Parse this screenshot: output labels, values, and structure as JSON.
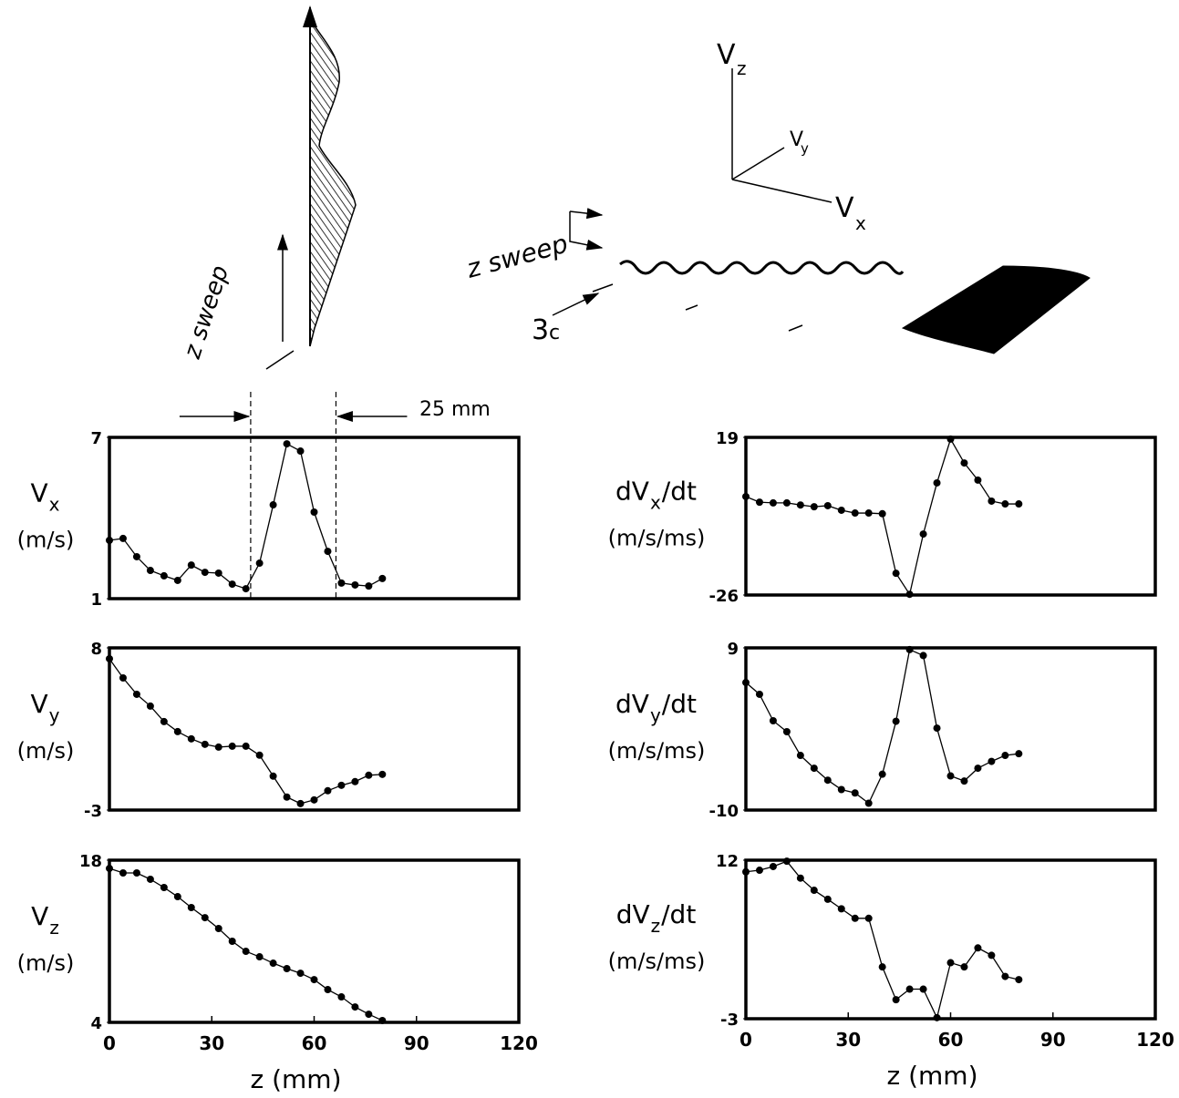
{
  "diagram": {
    "left_sweep_label": "z sweep",
    "right_sweep_label": "z sweep",
    "axis_z": {
      "main": "V",
      "sub": "z"
    },
    "axis_y": {
      "main": "V",
      "sub": "y"
    },
    "axis_x": {
      "main": "V",
      "sub": "x"
    },
    "distance": {
      "main": "3",
      "sub": "c"
    }
  },
  "chart_data": [
    {
      "type": "line",
      "ylabel": [
        {
          "text": "V"
        },
        {
          "text": "x",
          "sub": true
        }
      ],
      "yunit": "(m/s)",
      "x": [
        0,
        4,
        8,
        12,
        16,
        20,
        24,
        28,
        32,
        36,
        40,
        44,
        48,
        52,
        56,
        60,
        64,
        68,
        72,
        76,
        80
      ],
      "values": [
        3.17,
        3.24,
        2.56,
        2.05,
        1.85,
        1.68,
        2.25,
        1.98,
        1.95,
        1.54,
        1.37,
        2.32,
        4.49,
        6.76,
        6.49,
        4.22,
        2.76,
        1.58,
        1.51,
        1.47,
        1.75
      ],
      "color": "#000000",
      "xlim": [
        0,
        120
      ],
      "ylim": [
        1,
        7
      ],
      "yticks": [
        1,
        7
      ],
      "vlines": [
        41.4,
        66.4
      ],
      "annotation": "25 mm"
    },
    {
      "type": "line",
      "ylabel": [
        {
          "text": "V"
        },
        {
          "text": "y",
          "sub": true
        }
      ],
      "yunit": "(m/s)",
      "x": [
        0,
        4,
        8,
        12,
        16,
        20,
        24,
        28,
        32,
        36,
        40,
        44,
        48,
        52,
        56,
        60,
        64,
        68,
        72,
        76,
        80
      ],
      "values": [
        7.26,
        5.96,
        4.85,
        4.05,
        3.0,
        2.32,
        1.83,
        1.46,
        1.27,
        1.33,
        1.33,
        0.72,
        -0.7,
        -2.12,
        -2.56,
        -2.31,
        -1.69,
        -1.32,
        -1.07,
        -0.64,
        -0.58
      ],
      "color": "#000000",
      "xlim": [
        0,
        120
      ],
      "ylim": [
        -3,
        8
      ],
      "yticks": [
        -3,
        8
      ]
    },
    {
      "type": "line",
      "ylabel": [
        {
          "text": "V"
        },
        {
          "text": "z",
          "sub": true
        }
      ],
      "yunit": "(m/s)",
      "x": [
        0,
        4,
        8,
        12,
        16,
        20,
        24,
        28,
        32,
        36,
        40,
        44,
        48,
        52,
        56,
        60,
        64,
        68,
        72,
        76,
        80
      ],
      "values": [
        17.29,
        16.9,
        16.9,
        16.35,
        15.64,
        14.85,
        13.91,
        13.04,
        12.1,
        11.0,
        10.13,
        9.66,
        9.11,
        8.64,
        8.24,
        7.69,
        6.83,
        6.2,
        5.33,
        4.7,
        4.16
      ],
      "color": "#000000",
      "xlim": [
        0,
        120
      ],
      "ylim": [
        4,
        18
      ],
      "yticks": [
        4,
        18
      ],
      "xticks": [
        0,
        30,
        60,
        90,
        120
      ],
      "xlabel": "z (mm)"
    },
    {
      "type": "line",
      "ylabel": [
        {
          "text": "dV"
        },
        {
          "text": "x",
          "sub": true
        },
        {
          "text": "/dt"
        }
      ],
      "yunit": "(m/s/ms)",
      "x": [
        0,
        4,
        8,
        12,
        16,
        20,
        24,
        28,
        32,
        36,
        40,
        44,
        48,
        52,
        56,
        60,
        64,
        68,
        72,
        76,
        80
      ],
      "values": [
        2.1,
        0.5,
        0.3,
        0.3,
        -0.3,
        -0.8,
        -0.5,
        -1.8,
        -2.6,
        -2.6,
        -2.8,
        -19.8,
        -25.8,
        -8.6,
        6.0,
        18.5,
        11.7,
        6.8,
        0.8,
        0,
        0
      ],
      "color": "#000000",
      "xlim": [
        0,
        120
      ],
      "ylim": [
        -26,
        19
      ],
      "yticks": [
        -26,
        19
      ]
    },
    {
      "type": "line",
      "ylabel": [
        {
          "text": "dV"
        },
        {
          "text": "y",
          "sub": true
        },
        {
          "text": "/dt"
        }
      ],
      "yunit": "(m/s/ms)",
      "x": [
        0,
        4,
        8,
        12,
        16,
        20,
        24,
        28,
        32,
        36,
        40,
        44,
        48,
        52,
        56,
        60,
        64,
        68,
        72,
        76,
        80
      ],
      "values": [
        4.94,
        3.56,
        0.46,
        -0.82,
        -3.6,
        -5.1,
        -6.5,
        -7.6,
        -8.0,
        -9.2,
        -5.8,
        0.4,
        8.8,
        8.1,
        -0.4,
        -6.0,
        -6.6,
        -5.1,
        -4.3,
        -3.6,
        -3.4
      ],
      "color": "#000000",
      "xlim": [
        0,
        120
      ],
      "ylim": [
        -10,
        9
      ],
      "yticks": [
        -10,
        9
      ]
    },
    {
      "type": "line",
      "ylabel": [
        {
          "text": "dV"
        },
        {
          "text": "z",
          "sub": true
        },
        {
          "text": "/dt"
        }
      ],
      "yunit": "(m/s/ms)",
      "x": [
        0,
        4,
        8,
        12,
        16,
        20,
        24,
        28,
        32,
        36,
        40,
        44,
        48,
        52,
        56,
        60,
        64,
        68,
        72,
        76,
        80
      ],
      "values": [
        10.9,
        11.05,
        11.4,
        11.9,
        10.3,
        9.15,
        8.3,
        7.4,
        6.5,
        6.5,
        1.9,
        -1.2,
        -0.2,
        -0.2,
        -2.9,
        2.3,
        1.9,
        3.7,
        3.0,
        1.0,
        0.7
      ],
      "color": "#000000",
      "xlim": [
        0,
        120
      ],
      "ylim": [
        -3,
        12
      ],
      "yticks": [
        -3,
        12
      ],
      "xticks": [
        0,
        30,
        60,
        90,
        120
      ],
      "xlabel": "z (mm)"
    }
  ]
}
